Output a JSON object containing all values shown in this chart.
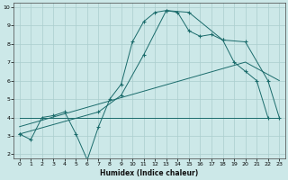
{
  "xlabel": "Humidex (Indice chaleur)",
  "bg_color": "#cce8e8",
  "line_color": "#1a6b6b",
  "grid_color": "#aacece",
  "xlim": [
    -0.5,
    23.5
  ],
  "ylim": [
    1.8,
    10.2
  ],
  "xticks": [
    0,
    1,
    2,
    3,
    4,
    5,
    6,
    7,
    8,
    9,
    10,
    11,
    12,
    13,
    14,
    15,
    16,
    17,
    18,
    19,
    20,
    21,
    22,
    23
  ],
  "yticks": [
    2,
    3,
    4,
    5,
    6,
    7,
    8,
    9,
    10
  ],
  "line1_x": [
    0,
    1,
    2,
    3,
    4,
    5,
    6,
    7,
    8,
    9,
    10,
    11,
    12,
    13,
    14,
    15,
    16,
    17,
    18,
    19,
    20,
    21,
    22
  ],
  "line1_y": [
    3.1,
    2.8,
    4.0,
    4.1,
    4.3,
    3.1,
    1.7,
    3.5,
    5.0,
    5.8,
    8.1,
    9.2,
    9.7,
    9.8,
    9.7,
    8.7,
    8.4,
    8.5,
    8.2,
    7.0,
    6.5,
    6.0,
    4.0
  ],
  "line2_x": [
    0,
    7,
    9,
    11,
    13,
    15,
    18,
    20,
    22,
    23
  ],
  "line2_y": [
    3.1,
    4.3,
    5.2,
    7.4,
    9.8,
    9.7,
    8.2,
    8.1,
    6.0,
    4.0
  ],
  "line3_x": [
    0,
    23
  ],
  "line3_y": [
    4.0,
    4.0
  ],
  "line4_x": [
    0,
    20,
    23
  ],
  "line4_y": [
    3.5,
    7.0,
    6.0
  ]
}
